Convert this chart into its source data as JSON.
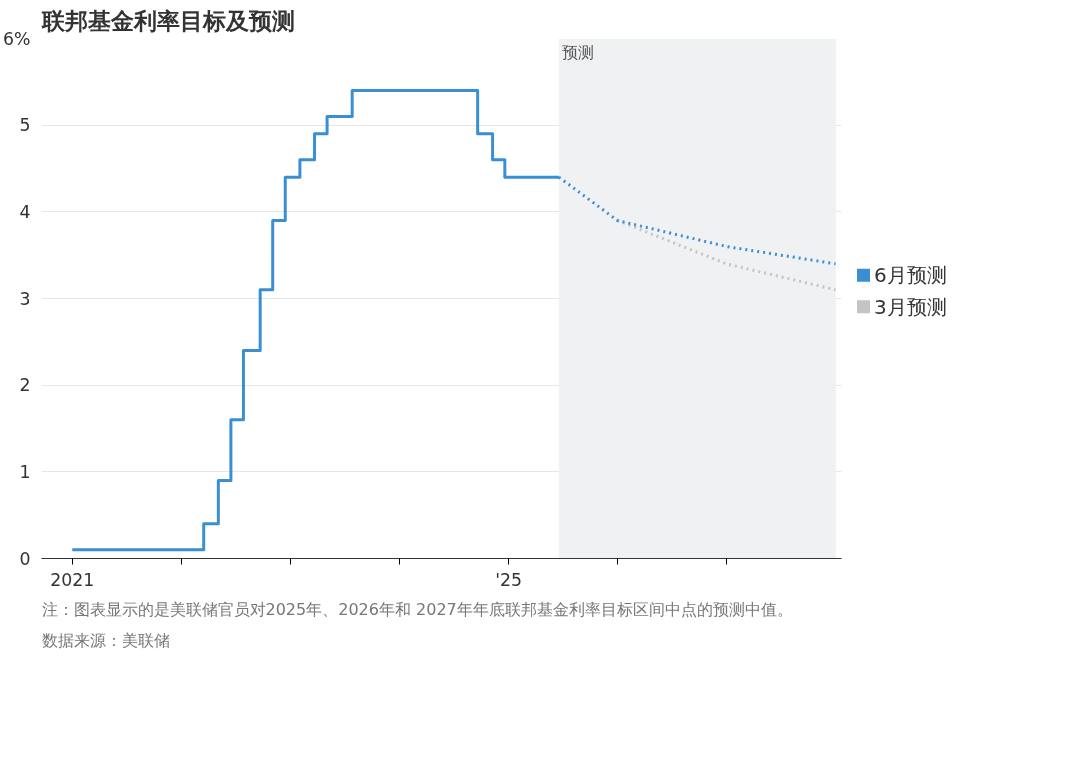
{
  "chart_data": {
    "type": "step",
    "title": "联邦基金利率目标及预测",
    "series": [
      {
        "color": "#3a8fd4",
        "line_style": "solid",
        "x": [
          "2021-01-01",
          "2022-03-17",
          "2022-05-05",
          "2022-06-16",
          "2022-07-28",
          "2022-09-22",
          "2022-11-03",
          "2022-12-15",
          "2023-02-02",
          "2023-03-23",
          "2023-05-04",
          "2023-07-27",
          "2024-09-19",
          "2024-11-08",
          "2024-12-19",
          "2025-06-18"
        ],
        "values": [
          0.1,
          0.4,
          0.9,
          1.6,
          2.4,
          3.1,
          3.9,
          4.4,
          4.6,
          4.9,
          5.1,
          5.4,
          4.9,
          4.6,
          4.4,
          4.4
        ]
      },
      {
        "type": "line",
        "name": "3月预测",
        "color": "#c4c4c4",
        "line_style": "dotted",
        "x": [
          "2025-12-31",
          "2026-12-31",
          "2027-12-31"
        ],
        "values": [
          3.9,
          3.4,
          3.1
        ]
      },
      {
        "type": "line",
        "name": "6月预测",
        "color": "#3a8fd4",
        "line_style": "dotted",
        "x": [
          "2025-06-18",
          "2025-12-31",
          "2026-12-31",
          "2027-12-31"
        ],
        "values": [
          4.4,
          3.9,
          3.6,
          3.4
        ]
      }
    ],
    "xlim": [
      "2020-09-20",
      "2028-01-20"
    ],
    "xticks": [
      {
        "value": "2021-01-01",
        "label": "2021"
      },
      {
        "value": "2022-01-01",
        "label": null
      },
      {
        "value": "2023-01-01",
        "label": null
      },
      {
        "value": "2024-01-01",
        "label": null
      },
      {
        "value": "2025-01-01",
        "label": "'25"
      },
      {
        "value": "2026-01-01",
        "label": null
      },
      {
        "value": "2027-01-01",
        "label": null
      }
    ],
    "ylim": [
      0,
      6
    ],
    "yticks": [
      0,
      1,
      2,
      3,
      4,
      5,
      {
        "value": 6,
        "label": "6%"
      }
    ],
    "bands": [
      {
        "axis": "x",
        "from": "2025-06-18",
        "to": "2028-01-01",
        "label": "预测",
        "color": "#f0f1f3"
      }
    ],
    "grid": "y",
    "legend": "right",
    "annotations": [
      "注：图表显示的是美联储官员对2025年、2026年和 2027年年底联邦基金利率目标区间中点的预测中值。",
      "数据来源：美联储"
    ]
  }
}
